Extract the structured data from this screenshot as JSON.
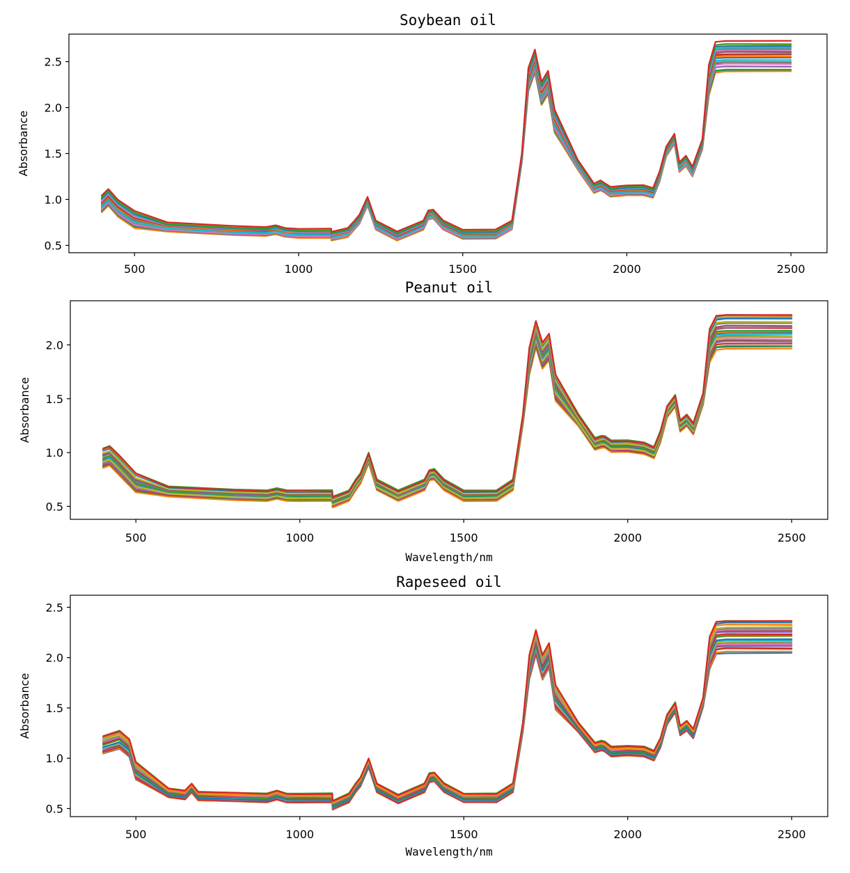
{
  "chart_data": [
    {
      "type": "line",
      "title": "Soybean oil",
      "xlabel": "",
      "ylabel": "Absorbance",
      "xlim": [
        300,
        2610
      ],
      "ylim": [
        0.42,
        2.8
      ],
      "xticks": [
        500,
        1000,
        1500,
        2000,
        2500
      ],
      "yticks": [
        0.5,
        1.0,
        1.5,
        2.0,
        2.5
      ],
      "xtick_labels": [
        "500",
        "1000",
        "1500",
        "2000",
        "2500"
      ],
      "ytick_labels": [
        "0.5",
        "1.0",
        "1.5",
        "2.0",
        "2.5"
      ],
      "x": [
        400,
        420,
        450,
        500,
        600,
        800,
        900,
        930,
        960,
        1000,
        1099,
        1100,
        1150,
        1170,
        1185,
        1210,
        1235,
        1300,
        1380,
        1395,
        1410,
        1440,
        1500,
        1600,
        1650,
        1680,
        1700,
        1720,
        1740,
        1760,
        1780,
        1850,
        1900,
        1920,
        1930,
        1950,
        2000,
        2050,
        2080,
        2100,
        2120,
        2145,
        2160,
        2180,
        2200,
        2230,
        2250,
        2270,
        2300,
        2500
      ],
      "base_series": [
        0.95,
        1.02,
        0.9,
        0.78,
        0.7,
        0.66,
        0.65,
        0.67,
        0.64,
        0.63,
        0.63,
        0.6,
        0.64,
        0.72,
        0.78,
        0.98,
        0.72,
        0.6,
        0.72,
        0.83,
        0.84,
        0.72,
        0.62,
        0.62,
        0.72,
        1.45,
        2.3,
        2.5,
        2.15,
        2.27,
        1.85,
        1.38,
        1.12,
        1.15,
        1.13,
        1.08,
        1.1,
        1.1,
        1.07,
        1.25,
        1.52,
        1.66,
        1.35,
        1.42,
        1.3,
        1.6,
        2.3,
        2.55,
        2.56,
        2.56
      ],
      "series_count": 24,
      "legend": "none"
    },
    {
      "type": "line",
      "title": "Peanut oil",
      "xlabel": "Wavelength/nm",
      "ylabel": "Absorbance",
      "xlim": [
        300,
        2610
      ],
      "ylim": [
        0.38,
        2.41
      ],
      "xticks": [
        500,
        1000,
        1500,
        2000,
        2500
      ],
      "yticks": [
        0.5,
        1.0,
        1.5,
        2.0
      ],
      "xtick_labels": [
        "500",
        "1000",
        "1500",
        "2000",
        "2500"
      ],
      "ytick_labels": [
        "0.5",
        "1.0",
        "1.5",
        "2.0"
      ],
      "x": [
        400,
        420,
        450,
        500,
        600,
        800,
        900,
        930,
        960,
        1000,
        1099,
        1100,
        1150,
        1170,
        1185,
        1210,
        1235,
        1300,
        1380,
        1395,
        1410,
        1440,
        1500,
        1600,
        1650,
        1680,
        1700,
        1720,
        1740,
        1760,
        1780,
        1850,
        1900,
        1920,
        1930,
        1950,
        2000,
        2050,
        2080,
        2100,
        2120,
        2145,
        2160,
        2180,
        2200,
        2230,
        2250,
        2270,
        2300,
        2500
      ],
      "base_series": [
        0.95,
        0.97,
        0.88,
        0.72,
        0.64,
        0.61,
        0.6,
        0.62,
        0.6,
        0.6,
        0.6,
        0.54,
        0.6,
        0.7,
        0.76,
        0.95,
        0.7,
        0.6,
        0.7,
        0.79,
        0.8,
        0.7,
        0.6,
        0.6,
        0.7,
        1.3,
        1.85,
        2.1,
        1.9,
        1.98,
        1.6,
        1.3,
        1.08,
        1.1,
        1.1,
        1.06,
        1.06,
        1.04,
        1.0,
        1.15,
        1.38,
        1.48,
        1.25,
        1.3,
        1.22,
        1.5,
        2.0,
        2.12,
        2.13,
        2.13
      ],
      "series_count": 24,
      "legend": "none"
    },
    {
      "type": "line",
      "title": "Rapeseed oil",
      "xlabel": "Wavelength/nm",
      "ylabel": "Absorbance",
      "xlim": [
        300,
        2610
      ],
      "ylim": [
        0.42,
        2.62
      ],
      "xticks": [
        500,
        1000,
        1500,
        2000,
        2500
      ],
      "yticks": [
        0.5,
        1.0,
        1.5,
        2.0,
        2.5
      ],
      "xtick_labels": [
        "500",
        "1000",
        "1500",
        "2000",
        "2500"
      ],
      "ytick_labels": [
        "0.5",
        "1.0",
        "1.5",
        "2.0",
        "2.5"
      ],
      "x": [
        400,
        420,
        450,
        480,
        500,
        600,
        650,
        670,
        690,
        800,
        900,
        930,
        960,
        1000,
        1099,
        1100,
        1150,
        1170,
        1185,
        1210,
        1235,
        1300,
        1380,
        1395,
        1410,
        1440,
        1500,
        1600,
        1650,
        1680,
        1700,
        1720,
        1740,
        1760,
        1780,
        1850,
        1900,
        1920,
        1930,
        1950,
        2000,
        2050,
        2080,
        2100,
        2120,
        2145,
        2160,
        2180,
        2200,
        2230,
        2250,
        2270,
        2300,
        2500
      ],
      "base_series": [
        1.13,
        1.15,
        1.18,
        1.1,
        0.87,
        0.65,
        0.63,
        0.7,
        0.62,
        0.61,
        0.6,
        0.63,
        0.6,
        0.6,
        0.6,
        0.53,
        0.6,
        0.7,
        0.76,
        0.95,
        0.7,
        0.59,
        0.7,
        0.8,
        0.81,
        0.7,
        0.6,
        0.6,
        0.7,
        1.3,
        1.9,
        2.15,
        1.9,
        2.02,
        1.6,
        1.3,
        1.1,
        1.12,
        1.11,
        1.06,
        1.07,
        1.06,
        1.02,
        1.15,
        1.38,
        1.5,
        1.27,
        1.32,
        1.24,
        1.55,
        2.05,
        2.2,
        2.21,
        2.21
      ],
      "series_count": 24,
      "legend": "none"
    }
  ],
  "style": {
    "colors": [
      "#1f77b4",
      "#ff7f0e",
      "#2ca02c",
      "#d62728",
      "#9467bd",
      "#8c564b",
      "#e377c2",
      "#7f7f7f",
      "#bcbd22",
      "#17becf"
    ]
  }
}
